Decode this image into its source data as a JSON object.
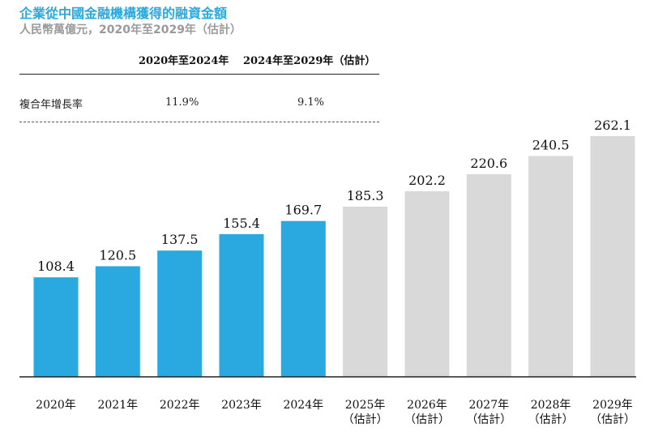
{
  "title": "企業從中國金融機構獲得的融資金額",
  "subtitle": "人民幣萬億元，2020年至2029年（估計）",
  "cagr": {
    "headers": [
      "2020年至2024年",
      "2024年至2029年（估計）"
    ],
    "row_label": "複合年增長率",
    "values": [
      "11.9%",
      "9.1%"
    ]
  },
  "chart_data": {
    "type": "bar",
    "categories": [
      "2020年",
      "2021年",
      "2022年",
      "2023年",
      "2024年",
      "2025年\n（估計）",
      "2026年\n（估計）",
      "2027年\n（估計）",
      "2028年\n（估計）",
      "2029年\n（估計）"
    ],
    "values": [
      108.4,
      120.5,
      137.5,
      155.4,
      169.7,
      185.3,
      202.2,
      220.6,
      240.5,
      262.1
    ],
    "value_labels": [
      "108.4",
      "120.5",
      "137.5",
      "155.4",
      "169.7",
      "185.3",
      "202.2",
      "220.6",
      "240.5",
      "262.1"
    ],
    "colors": {
      "actual": "#29a9e0",
      "estimate": "#d9d9d9"
    },
    "estimate_start_index": 5,
    "ylim": [
      0,
      262.1
    ],
    "grid": false,
    "legend": "none"
  }
}
